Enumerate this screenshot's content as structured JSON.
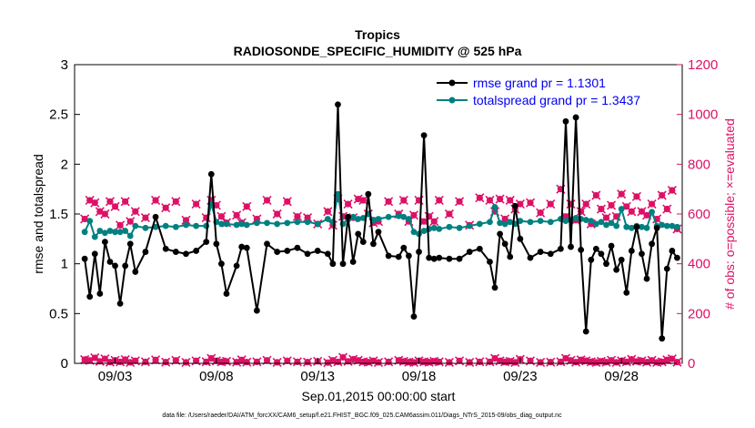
{
  "chart_data": {
    "type": "line",
    "title": "Tropics",
    "subtitle": "RADIOSONDE_SPECIFIC_HUMIDITY @ 525 hPa",
    "xlabel": "Sep.01,2015 00:00:00 start",
    "ylabel_left": "rmse and totalspread",
    "ylabel_right": "# of obs: o=possible; ×=evaluated",
    "ylim_left": [
      0,
      3
    ],
    "ylim_right": [
      0,
      1200
    ],
    "xlim": [
      1,
      31
    ],
    "xticks": [
      {
        "x": 3,
        "label": "09/03"
      },
      {
        "x": 8,
        "label": "09/08"
      },
      {
        "x": 13,
        "label": "09/13"
      },
      {
        "x": 18,
        "label": "09/18"
      },
      {
        "x": 23,
        "label": "09/23"
      },
      {
        "x": 28,
        "label": "09/28"
      }
    ],
    "yticks_left": [
      "0",
      "0.5",
      "1",
      "1.5",
      "2",
      "2.5",
      "3"
    ],
    "yticks_right": [
      "0",
      "200",
      "400",
      "600",
      "800",
      "1000",
      "1200"
    ],
    "grid": false,
    "legend_position": "top-right",
    "series": [
      {
        "name": "rmse grand pr = 1.1301",
        "axis": "left",
        "color": "#000000",
        "x": [
          1.5,
          1.75,
          2,
          2.25,
          2.5,
          2.75,
          3,
          3.25,
          3.5,
          3.75,
          4,
          4.5,
          5,
          5.5,
          6,
          6.5,
          7,
          7.5,
          7.75,
          8,
          8.25,
          8.5,
          9,
          9.25,
          9.5,
          10,
          10.5,
          11,
          11.5,
          12,
          12.5,
          13,
          13.5,
          13.75,
          14,
          14.25,
          14.5,
          14.75,
          15,
          15.25,
          15.5,
          15.75,
          16,
          16.5,
          17,
          17.25,
          17.5,
          17.75,
          18,
          18.25,
          18.5,
          18.75,
          19,
          19.5,
          20,
          20.5,
          21,
          21.5,
          21.75,
          22,
          22.25,
          22.5,
          22.75,
          23,
          23.5,
          24,
          24.5,
          25,
          25.25,
          25.5,
          25.75,
          26,
          26.25,
          26.5,
          26.75,
          27,
          27.25,
          27.5,
          27.75,
          28,
          28.25,
          28.5,
          28.75,
          29,
          29.25,
          29.5,
          29.75,
          30,
          30.25,
          30.5,
          30.75
        ],
        "values": [
          1.05,
          0.67,
          1.1,
          0.7,
          1.22,
          1.02,
          0.98,
          0.6,
          0.98,
          1.2,
          0.92,
          1.12,
          1.47,
          1.15,
          1.12,
          1.1,
          1.13,
          1.22,
          1.9,
          1.2,
          1.0,
          0.7,
          0.98,
          1.17,
          1.16,
          0.53,
          1.2,
          1.12,
          1.13,
          1.16,
          1.1,
          1.13,
          1.1,
          1.0,
          2.6,
          1.0,
          1.47,
          1.02,
          1.3,
          1.22,
          1.7,
          1.2,
          1.32,
          1.08,
          1.07,
          1.16,
          1.08,
          0.47,
          1.12,
          2.29,
          1.06,
          1.05,
          1.06,
          1.05,
          1.05,
          1.12,
          1.15,
          1.02,
          0.76,
          1.3,
          1.2,
          1.07,
          1.58,
          1.25,
          1.06,
          1.12,
          1.1,
          1.15,
          2.43,
          1.17,
          2.47,
          1.14,
          0.32,
          1.04,
          1.15,
          1.1,
          1.0,
          1.18,
          0.94,
          1.04,
          0.71,
          1.13,
          1.37,
          1.1,
          0.85,
          1.2,
          1.36,
          0.25,
          0.95,
          1.13,
          1.06
        ]
      },
      {
        "name": "totalspread grand pr = 1.3437",
        "axis": "left",
        "color": "#008080",
        "x": [
          1.5,
          1.75,
          2,
          2.25,
          2.5,
          2.75,
          3,
          3.25,
          3.5,
          3.75,
          4,
          4.5,
          5,
          5.5,
          6,
          6.5,
          7,
          7.5,
          7.75,
          8,
          8.25,
          8.5,
          9,
          9.25,
          9.5,
          10,
          10.5,
          11,
          11.5,
          12,
          12.5,
          13,
          13.5,
          13.75,
          14,
          14.25,
          14.5,
          14.75,
          15,
          15.25,
          15.5,
          15.75,
          16,
          16.5,
          17,
          17.25,
          17.5,
          17.75,
          18,
          18.25,
          18.5,
          18.75,
          19,
          19.5,
          20,
          20.5,
          21,
          21.5,
          21.75,
          22,
          22.25,
          22.5,
          22.75,
          23,
          23.5,
          24,
          24.5,
          25,
          25.25,
          25.5,
          25.75,
          26,
          26.25,
          26.5,
          26.75,
          27,
          27.25,
          27.5,
          27.75,
          28,
          28.25,
          28.5,
          28.75,
          29,
          29.25,
          29.5,
          29.75,
          30,
          30.25,
          30.5,
          30.75
        ],
        "values": [
          1.32,
          1.43,
          1.27,
          1.33,
          1.31,
          1.33,
          1.32,
          1.32,
          1.33,
          1.28,
          1.38,
          1.36,
          1.37,
          1.38,
          1.37,
          1.39,
          1.38,
          1.38,
          1.6,
          1.42,
          1.4,
          1.4,
          1.39,
          1.4,
          1.39,
          1.41,
          1.41,
          1.4,
          1.41,
          1.42,
          1.42,
          1.4,
          1.45,
          1.42,
          1.7,
          1.4,
          1.45,
          1.47,
          1.45,
          1.46,
          1.5,
          1.44,
          1.45,
          1.47,
          1.48,
          1.47,
          1.45,
          1.32,
          1.3,
          1.33,
          1.35,
          1.36,
          1.35,
          1.37,
          1.36,
          1.38,
          1.4,
          1.42,
          1.57,
          1.41,
          1.4,
          1.42,
          1.4,
          1.43,
          1.42,
          1.43,
          1.42,
          1.45,
          1.43,
          1.44,
          1.46,
          1.45,
          1.44,
          1.43,
          1.4,
          1.42,
          1.39,
          1.41,
          1.38,
          1.55,
          1.37,
          1.36,
          1.38,
          1.37,
          1.36,
          1.52,
          1.38,
          1.39,
          1.38,
          1.38,
          1.37
        ]
      },
      {
        "name": "evaluated",
        "axis": "right",
        "color": "#dd1166",
        "marker": "x",
        "x": [
          1.5,
          1.75,
          2,
          2.25,
          2.5,
          2.75,
          3,
          3.25,
          3.5,
          3.75,
          4,
          4.5,
          5,
          5.5,
          6,
          6.5,
          7,
          7.5,
          7.75,
          8,
          8.25,
          8.5,
          9,
          9.25,
          9.5,
          10,
          10.5,
          11,
          11.5,
          12,
          12.5,
          13,
          13.5,
          13.75,
          14,
          14.25,
          14.5,
          14.75,
          15,
          15.25,
          15.5,
          15.75,
          16,
          16.5,
          17,
          17.25,
          17.5,
          17.75,
          18,
          18.25,
          18.5,
          18.75,
          19,
          19.5,
          20,
          20.5,
          21,
          21.5,
          21.75,
          22,
          22.25,
          22.5,
          22.75,
          23,
          23.5,
          24,
          24.5,
          25,
          25.25,
          25.5,
          25.75,
          26,
          26.25,
          26.5,
          26.75,
          27,
          27.25,
          27.5,
          27.75,
          28,
          28.25,
          28.5,
          28.75,
          29,
          29.25,
          29.5,
          29.75,
          30,
          30.25,
          30.5,
          30.75
        ],
        "values": [
          580,
          655,
          645,
          610,
          600,
          650,
          630,
          555,
          650,
          570,
          610,
          585,
          655,
          625,
          650,
          575,
          640,
          585,
          655,
          635,
          590,
          565,
          595,
          565,
          630,
          580,
          655,
          600,
          650,
          590,
          585,
          560,
          610,
          555,
          660,
          590,
          640,
          585,
          660,
          655,
          600,
          565,
          570,
          650,
          600,
          655,
          570,
          595,
          655,
          570,
          590,
          570,
          655,
          600,
          650,
          555,
          665,
          655,
          610,
          660,
          580,
          655,
          620,
          640,
          645,
          605,
          640,
          700,
          590,
          640,
          575,
          610,
          640,
          560,
          675,
          620,
          585,
          635,
          590,
          680,
          630,
          610,
          670,
          610,
          595,
          640,
          580,
          675,
          620,
          695,
          540
        ]
      },
      {
        "name": "possible",
        "axis": "right",
        "color": "#dd1166",
        "marker": "o",
        "x": [
          1.5,
          1.75,
          2,
          2.25,
          2.5,
          2.75,
          3,
          3.25,
          3.5,
          3.75,
          4,
          4.5,
          5,
          5.5,
          6,
          6.5,
          7,
          7.5,
          7.75,
          8,
          8.25,
          8.5,
          9,
          9.25,
          9.5,
          10,
          10.5,
          11,
          11.5,
          12,
          12.5,
          13,
          13.5,
          13.75,
          14,
          14.25,
          14.5,
          14.75,
          15,
          15.25,
          15.5,
          15.75,
          16,
          16.5,
          17,
          17.25,
          17.5,
          17.75,
          18,
          18.25,
          18.5,
          18.75,
          19,
          19.5,
          20,
          20.5,
          21,
          21.5,
          21.75,
          22,
          22.25,
          22.5,
          22.75,
          23,
          23.5,
          24,
          24.5,
          25,
          25.25,
          25.5,
          25.75,
          26,
          26.25,
          26.5,
          26.75,
          27,
          27.25,
          27.5,
          27.75,
          28,
          28.25,
          28.5,
          28.75,
          29,
          29.25,
          29.5,
          29.75,
          30,
          30.25,
          30.5,
          30.75
        ],
        "values": [
          15,
          12,
          22,
          8,
          18,
          5,
          12,
          6,
          15,
          4,
          10,
          6,
          14,
          5,
          12,
          4,
          10,
          6,
          20,
          10,
          6,
          8,
          5,
          14,
          5,
          6,
          12,
          4,
          10,
          6,
          5,
          8,
          3,
          12,
          6,
          24,
          8,
          16,
          12,
          6,
          5,
          10,
          4,
          6,
          12,
          8,
          5,
          4,
          10,
          6,
          5,
          8,
          6,
          4,
          10,
          4,
          6,
          6,
          20,
          10,
          6,
          8,
          4,
          16,
          10,
          4,
          5,
          6,
          20,
          12,
          5,
          14,
          10,
          6,
          4,
          8,
          5,
          12,
          4,
          10,
          6,
          16,
          8,
          10,
          5,
          12,
          4,
          6,
          14,
          18,
          5
        ]
      }
    ],
    "footnote": "data file: /Users/raeder/DAI/ATM_forcXX/CAM6_setup/f.e21.FHIST_BGC.f09_025.CAM6assim.011/Diags_NTrS_2015-09/obs_diag_output.nc"
  }
}
